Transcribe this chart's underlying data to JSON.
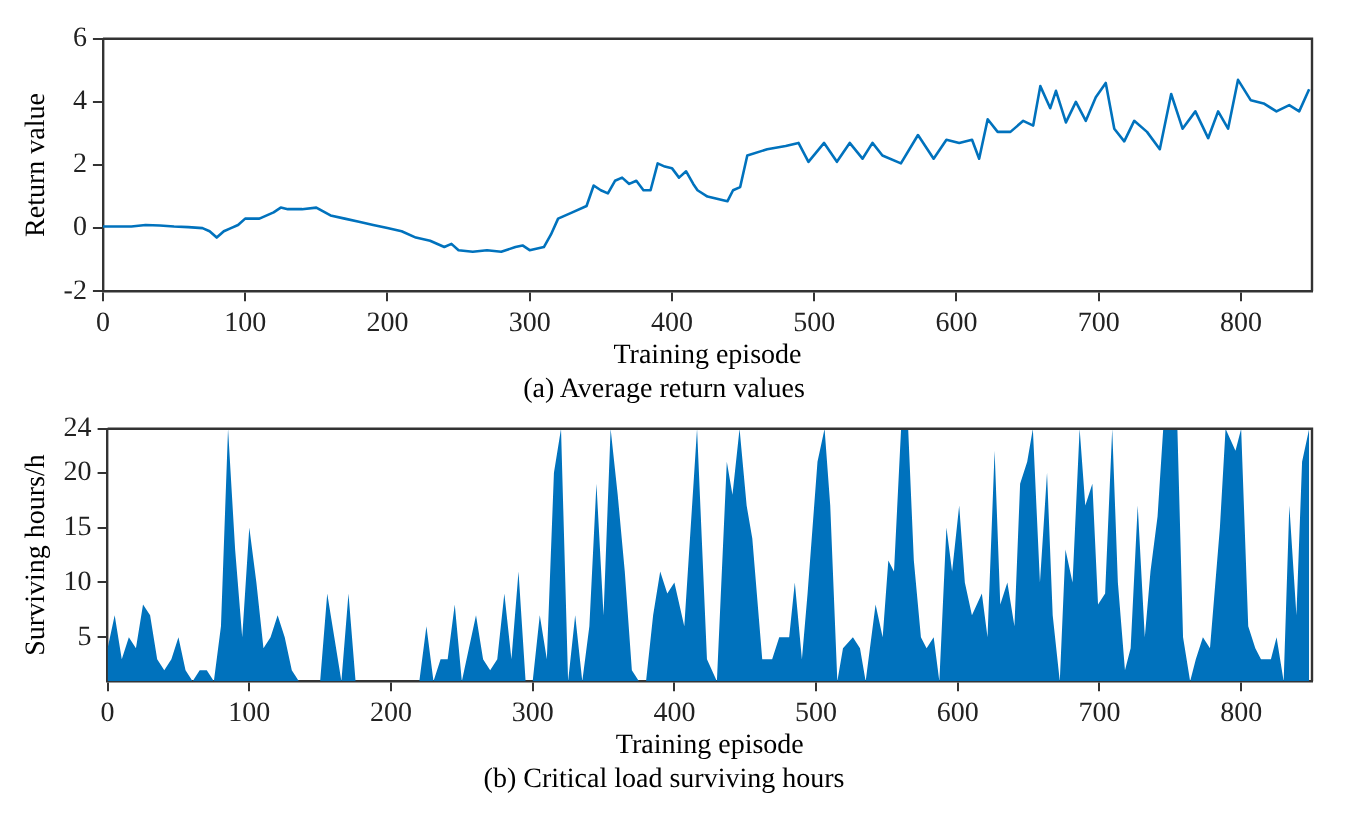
{
  "chart_data": [
    {
      "type": "line",
      "title": "(a) Average return values",
      "xlabel": "Training episode",
      "ylabel": "Return value",
      "xlim": [
        0,
        850
      ],
      "xticks": [
        0,
        100,
        200,
        300,
        400,
        500,
        600,
        700,
        800
      ],
      "ylim": [
        -2,
        6
      ],
      "yticks": [
        -2,
        0,
        2,
        4,
        6
      ],
      "grid": false,
      "legend": false,
      "x": [
        0,
        10,
        20,
        30,
        40,
        50,
        60,
        70,
        75,
        80,
        85,
        90,
        95,
        100,
        110,
        120,
        125,
        130,
        140,
        150,
        160,
        170,
        180,
        190,
        200,
        210,
        220,
        230,
        240,
        245,
        250,
        260,
        270,
        280,
        290,
        295,
        300,
        310,
        315,
        320,
        330,
        340,
        345,
        350,
        355,
        360,
        365,
        370,
        375,
        380,
        385,
        390,
        395,
        400,
        405,
        410,
        415,
        418,
        425,
        439,
        443,
        448,
        453,
        467,
        480,
        489,
        496,
        507,
        516,
        525,
        534,
        541,
        548,
        561,
        573,
        584,
        593,
        602,
        611,
        616,
        622,
        629,
        638,
        647,
        654,
        659,
        666,
        670,
        677,
        684,
        691,
        698,
        705,
        711,
        718,
        725,
        734,
        743,
        751,
        759,
        768,
        777,
        784,
        791,
        798,
        807,
        816,
        825,
        834,
        841,
        848
      ],
      "series": [
        {
          "color": "#0072bd",
          "values": [
            0.05,
            0.05,
            0.05,
            0.1,
            0.08,
            0.05,
            0.03,
            0,
            -0.1,
            -0.3,
            -0.1,
            0,
            0.1,
            0.3,
            0.3,
            0.5,
            0.65,
            0.6,
            0.6,
            0.65,
            0.4,
            0.3,
            0.2,
            0.1,
            0,
            -0.1,
            -0.3,
            -0.4,
            -0.6,
            -0.5,
            -0.7,
            -0.75,
            -0.7,
            -0.75,
            -0.6,
            -0.55,
            -0.7,
            -0.6,
            -0.2,
            0.3,
            0.5,
            0.7,
            1.35,
            1.2,
            1.1,
            1.5,
            1.6,
            1.4,
            1.5,
            1.2,
            1.2,
            2.05,
            1.95,
            1.9,
            1.6,
            1.8,
            1.4,
            1.2,
            1.0,
            0.85,
            1.2,
            1.3,
            2.3,
            2.5,
            2.6,
            2.7,
            2.1,
            2.7,
            2.1,
            2.7,
            2.2,
            2.7,
            2.3,
            2.05,
            2.95,
            2.2,
            2.8,
            2.7,
            2.8,
            2.2,
            3.45,
            3.05,
            3.05,
            3.4,
            3.25,
            4.5,
            3.8,
            4.35,
            3.35,
            4.0,
            3.4,
            4.15,
            4.6,
            3.15,
            2.75,
            3.4,
            3.05,
            2.5,
            4.25,
            3.15,
            3.7,
            2.85,
            3.7,
            3.15,
            4.7,
            4.05,
            3.95,
            3.7,
            3.9,
            3.7,
            4.4
          ]
        }
      ]
    },
    {
      "type": "area",
      "title": "(b) Critical load surviving hours",
      "xlabel": "Training episode",
      "ylabel": "Surviving hours/h",
      "xlim": [
        0,
        850
      ],
      "xticks": [
        0,
        100,
        200,
        300,
        400,
        500,
        600,
        700,
        800
      ],
      "ylim": [
        1,
        24
      ],
      "yticks": [
        5,
        10,
        15,
        20,
        24
      ],
      "grid": false,
      "legend": false,
      "x": [
        0,
        5,
        10,
        15,
        20,
        25,
        30,
        35,
        40,
        45,
        50,
        55,
        60,
        65,
        70,
        75,
        80,
        85,
        90,
        95,
        100,
        105,
        110,
        115,
        120,
        125,
        130,
        135,
        150,
        155,
        160,
        165,
        170,
        175,
        220,
        225,
        230,
        235,
        240,
        245,
        250,
        255,
        260,
        265,
        270,
        275,
        280,
        285,
        290,
        295,
        300,
        305,
        310,
        315,
        320,
        325,
        330,
        335,
        340,
        345,
        350,
        355,
        360,
        365,
        370,
        375,
        380,
        385,
        390,
        395,
        400,
        407,
        416,
        423,
        430,
        437,
        441,
        446,
        451,
        455,
        462,
        469,
        474,
        481,
        485,
        490,
        494,
        501,
        506,
        510,
        515,
        519,
        526,
        531,
        535,
        542,
        547,
        551,
        555,
        560,
        565,
        569,
        574,
        578,
        583,
        587,
        592,
        596,
        601,
        605,
        610,
        617,
        621,
        626,
        630,
        635,
        640,
        644,
        649,
        653,
        658,
        663,
        667,
        672,
        676,
        681,
        686,
        690,
        695,
        699,
        704,
        709,
        713,
        718,
        722,
        727,
        732,
        736,
        741,
        745,
        750,
        755,
        759,
        764,
        768,
        773,
        778,
        785,
        789,
        796,
        800,
        805,
        810,
        814,
        821,
        825,
        830,
        834,
        839,
        843,
        848
      ],
      "series": [
        {
          "color": "#0072bd",
          "values": [
            4,
            7,
            3,
            5,
            4,
            8,
            7,
            3,
            2,
            3,
            5,
            2,
            1,
            2,
            2,
            1,
            6,
            24,
            13,
            5,
            15,
            10,
            4,
            5,
            7,
            5,
            2,
            1,
            1,
            9,
            5,
            1,
            9,
            1,
            1,
            6,
            1,
            3,
            3,
            8,
            1,
            4,
            7,
            3,
            2,
            3,
            9,
            3,
            11,
            1,
            1,
            7,
            3,
            20,
            24,
            1,
            7,
            1,
            6,
            19,
            7,
            24,
            18,
            11,
            2,
            1,
            1,
            7,
            11,
            9,
            10,
            6,
            24,
            3,
            1,
            21,
            18,
            24,
            17,
            14,
            3,
            3,
            5,
            5,
            10,
            3,
            9,
            21,
            24,
            17,
            1,
            4,
            5,
            4,
            1,
            8,
            5,
            12,
            11,
            24,
            24,
            12,
            5,
            4,
            5,
            1,
            15,
            11,
            17,
            10,
            7,
            9,
            5,
            22,
            8,
            10,
            6,
            19,
            21,
            24,
            10,
            20,
            7,
            1,
            13,
            10,
            24,
            17,
            19,
            8,
            9,
            24,
            10,
            2,
            4,
            17,
            5,
            11,
            16,
            24,
            24,
            24,
            5,
            1,
            3,
            5,
            4,
            15,
            24,
            22,
            24,
            6,
            4,
            3,
            3,
            5,
            1,
            17,
            7,
            21,
            24
          ]
        }
      ]
    }
  ]
}
